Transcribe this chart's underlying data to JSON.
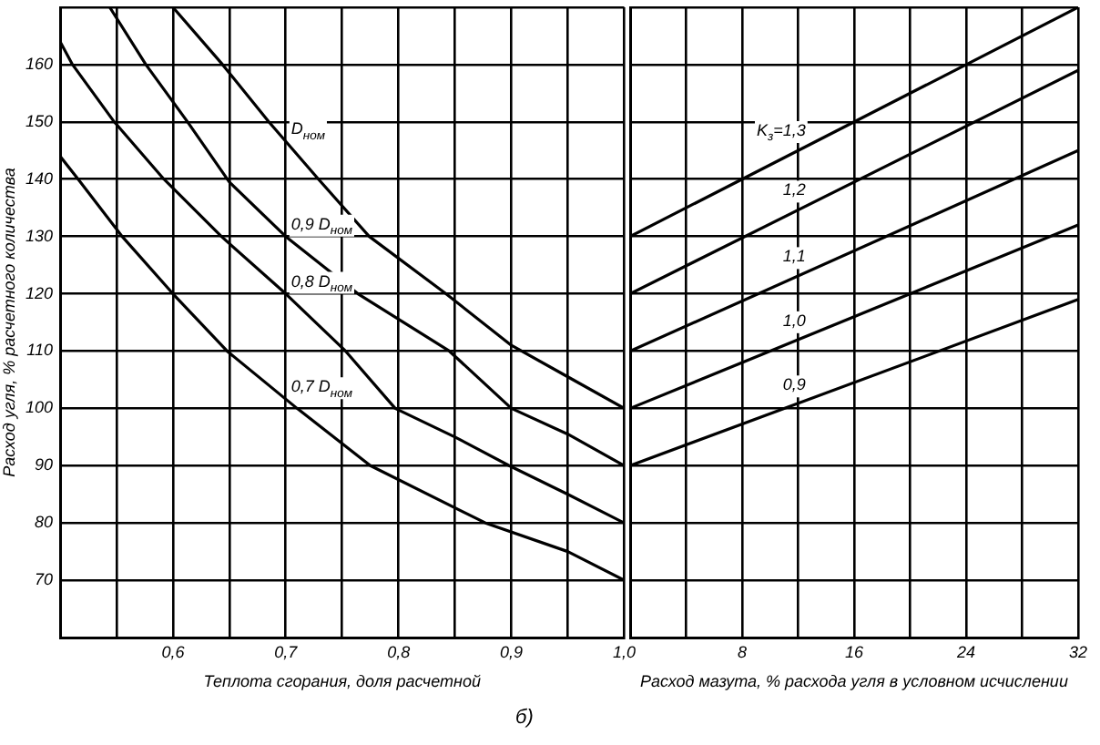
{
  "chart_data": [
    {
      "type": "line",
      "xlabel": "Теплота сгорания, доля расчетной",
      "ylabel": "Расход угля, % расчетного количества",
      "annotations": [
        "б)"
      ],
      "xlim": [
        0.5,
        1.0
      ],
      "xticks": [
        {
          "value": 0.5,
          "label": null
        },
        {
          "value": 0.55,
          "label": null
        },
        {
          "value": 0.6,
          "label": "0,6"
        },
        {
          "value": 0.65,
          "label": null
        },
        {
          "value": 0.7,
          "label": "0,7"
        },
        {
          "value": 0.75,
          "label": null
        },
        {
          "value": 0.8,
          "label": "0,8"
        },
        {
          "value": 0.85,
          "label": null
        },
        {
          "value": 0.9,
          "label": "0,9"
        },
        {
          "value": 0.95,
          "label": null
        },
        {
          "value": 1.0,
          "label": "1,0"
        }
      ],
      "ylim": [
        60,
        170
      ],
      "yticks": [
        {
          "value": 60,
          "label": null
        },
        70,
        80,
        90,
        100,
        110,
        120,
        130,
        140,
        150,
        160,
        {
          "value": 170,
          "label": null
        }
      ],
      "grid": true,
      "legend": false,
      "marker": "none",
      "series": [
        {
          "name": "D$_{ном}$",
          "color": "#000000",
          "x": [
            0.6,
            0.644,
            0.685,
            0.729,
            0.774,
            0.842,
            0.9,
            0.95,
            1.0
          ],
          "values": [
            170,
            160,
            150,
            140,
            130,
            120,
            111,
            105.5,
            100
          ]
        },
        {
          "name": "0,9 D$_{ном}$",
          "color": "#000000",
          "x": [
            0.544,
            0.576,
            0.613,
            0.65,
            0.7,
            0.764,
            0.845,
            0.9,
            0.95,
            1.0
          ],
          "values": [
            170,
            160,
            150,
            139.5,
            130,
            120,
            110,
            100,
            95.5,
            90
          ]
        },
        {
          "name": "0,8 D$_{ном}$",
          "color": "#000000",
          "x": [
            0.5,
            0.511,
            0.548,
            0.592,
            0.643,
            0.7,
            0.753,
            0.797,
            0.85,
            0.898,
            0.95,
            1.0
          ],
          "values": [
            164,
            160,
            150,
            140,
            130,
            120,
            110,
            100,
            95,
            90,
            85,
            80
          ]
        },
        {
          "name": "0,7 D$_{ном}$",
          "color": "#000000",
          "x": [
            0.5,
            0.516,
            0.555,
            0.6,
            0.648,
            0.71,
            0.775,
            0.877,
            0.95,
            1.0
          ],
          "values": [
            144,
            140,
            130,
            120,
            110,
            100,
            90,
            80,
            75,
            70
          ]
        }
      ]
    },
    {
      "type": "line",
      "xlabel": "Расход мазута, % расхода угля в условном исчислении",
      "xlim": [
        0,
        32
      ],
      "xticks": [
        {
          "value": 0,
          "label": null
        },
        {
          "value": 4,
          "label": null
        },
        8,
        {
          "value": 12,
          "label": null
        },
        16,
        {
          "value": 20,
          "label": null
        },
        24,
        {
          "value": 28,
          "label": null
        },
        32
      ],
      "ylim": [
        60,
        170
      ],
      "yticks": [
        60,
        70,
        80,
        90,
        100,
        110,
        120,
        130,
        140,
        150,
        160,
        170
      ],
      "tick_labels": "x",
      "grid": true,
      "legend": false,
      "marker": "none",
      "series": [
        {
          "name": "K$_{з}$=1,3",
          "color": "#000000",
          "x": [
            0,
            32
          ],
          "values": [
            130,
            170
          ]
        },
        {
          "name": "1,2",
          "color": "#000000",
          "x": [
            0,
            32
          ],
          "values": [
            120,
            159
          ]
        },
        {
          "name": "1,1",
          "color": "#000000",
          "x": [
            0,
            32
          ],
          "values": [
            110,
            145
          ]
        },
        {
          "name": "1,0",
          "color": "#000000",
          "x": [
            0,
            32
          ],
          "values": [
            100,
            132
          ]
        },
        {
          "name": "0,9",
          "color": "#000000",
          "x": [
            0,
            32
          ],
          "values": [
            90,
            119
          ]
        }
      ]
    }
  ]
}
